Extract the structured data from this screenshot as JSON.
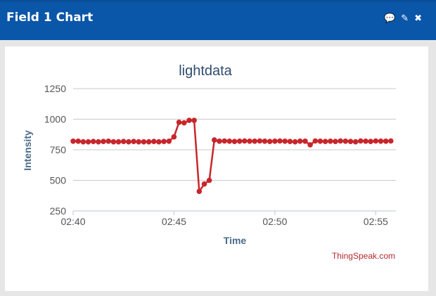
{
  "header": {
    "title": "Field 1 Chart",
    "icons": {
      "comment": "💬",
      "edit": "✎",
      "close": "✖"
    }
  },
  "footer": {
    "credit": "ThingSpeak.com"
  },
  "colors": {
    "header_bg": "#0a56a8",
    "series": "#c8262c",
    "title": "#2f4b6e",
    "axis_title": "#4a6a8a",
    "credit": "#b4292f"
  },
  "chart_data": {
    "type": "line",
    "title": "lightdata",
    "xlabel": "Time",
    "ylabel": "Intensity",
    "ylim": [
      250,
      1250
    ],
    "yticks": [
      250,
      500,
      750,
      1000,
      1250
    ],
    "xlim": [
      "02:40",
      "02:56"
    ],
    "xticks": [
      "02:40",
      "02:45",
      "02:50",
      "02:55"
    ],
    "grid": true,
    "legend": "none",
    "series": [
      {
        "x": [
          "02:40:00",
          "02:40:15",
          "02:40:30",
          "02:40:45",
          "02:41:00",
          "02:41:15",
          "02:41:30",
          "02:41:45",
          "02:42:00",
          "02:42:15",
          "02:42:30",
          "02:42:45",
          "02:43:00",
          "02:43:15",
          "02:43:30",
          "02:43:45",
          "02:44:00",
          "02:44:15",
          "02:44:30",
          "02:44:45",
          "02:45:00",
          "02:45:15",
          "02:45:30",
          "02:45:45",
          "02:46:00",
          "02:46:15",
          "02:46:30",
          "02:46:45",
          "02:47:00",
          "02:47:15",
          "02:47:30",
          "02:47:45",
          "02:48:00",
          "02:48:15",
          "02:48:30",
          "02:48:45",
          "02:49:00",
          "02:49:15",
          "02:49:30",
          "02:49:45",
          "02:50:00",
          "02:50:15",
          "02:50:30",
          "02:50:45",
          "02:51:00",
          "02:51:15",
          "02:51:30",
          "02:51:45",
          "02:52:00",
          "02:52:15",
          "02:52:30",
          "02:52:45",
          "02:53:00",
          "02:53:15",
          "02:53:30",
          "02:53:45",
          "02:54:00",
          "02:54:15",
          "02:54:30",
          "02:54:45",
          "02:55:00",
          "02:55:15",
          "02:55:30",
          "02:55:45"
        ],
        "y": [
          820,
          820,
          815,
          815,
          818,
          815,
          818,
          820,
          815,
          815,
          818,
          815,
          818,
          815,
          815,
          815,
          818,
          815,
          818,
          820,
          855,
          975,
          970,
          990,
          990,
          410,
          470,
          500,
          830,
          820,
          822,
          820,
          818,
          820,
          822,
          820,
          820,
          822,
          820,
          818,
          820,
          822,
          820,
          818,
          815,
          820,
          820,
          790,
          822,
          820,
          818,
          820,
          818,
          822,
          820,
          818,
          815,
          822,
          820,
          818,
          822,
          820,
          820,
          822
        ]
      }
    ]
  }
}
